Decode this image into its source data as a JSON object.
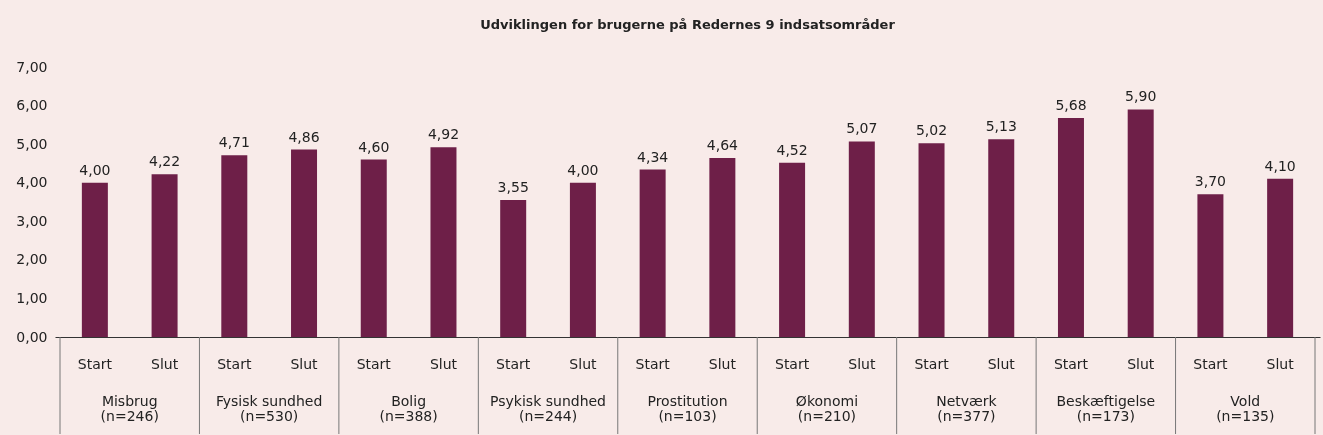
{
  "chart_data": {
    "type": "bar",
    "title": "Udviklingen for brugerne på Redernes 9 indsatsområder",
    "categories": [
      "Start",
      "Slut",
      "Start",
      "Slut",
      "Start",
      "Slut",
      "Start",
      "Slut",
      "Start",
      "Slut",
      "Start",
      "Slut",
      "Start",
      "Slut",
      "Start",
      "Slut",
      "Start",
      "Slut"
    ],
    "values": [
      4.0,
      4.22,
      4.71,
      4.86,
      4.6,
      4.92,
      3.55,
      4.0,
      4.34,
      4.64,
      4.52,
      5.07,
      5.02,
      5.13,
      5.68,
      5.9,
      3.7,
      4.1
    ],
    "value_labels": [
      "4,00",
      "4,22",
      "4,71",
      "4,86",
      "4,60",
      "4,92",
      "3,55",
      "4,00",
      "4,34",
      "4,64",
      "4,52",
      "5,07",
      "5,02",
      "5,13",
      "5,68",
      "5,90",
      "3,70",
      "4,10"
    ],
    "color": "#6e1f48",
    "ylim": [
      0,
      7
    ],
    "yticks": [
      {
        "value": 0,
        "label": "0,00"
      },
      {
        "value": 1,
        "label": "1,00"
      },
      {
        "value": 2,
        "label": "2,00"
      },
      {
        "value": 3,
        "label": "3,00"
      },
      {
        "value": 4,
        "label": "4,00"
      },
      {
        "value": 5,
        "label": "5,00"
      },
      {
        "value": 6,
        "label": "6,00"
      },
      {
        "value": 7,
        "label": "7,00"
      }
    ],
    "annotations": [
      "Misbrug (n=246)",
      "Fysisk sundhed (n=530)",
      "Bolig (n=388)",
      "Psykisk sundhed (n=244)",
      "Prostitution (n=103)",
      "Økonomi (n=210)",
      "Netværk (n=377)",
      "Beskæftigelse (n=173)",
      "Vold (n=135)"
    ],
    "grid": false
  }
}
